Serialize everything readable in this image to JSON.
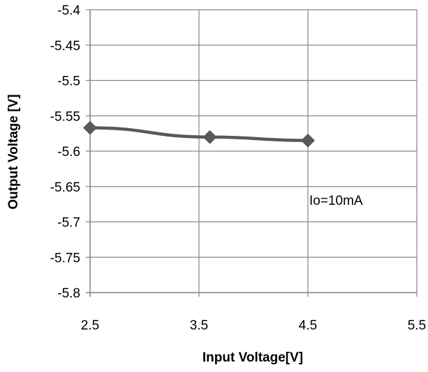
{
  "chart_data": {
    "type": "line",
    "xlabel": "Input Voltage[V]",
    "ylabel": "Output Voltage [V]",
    "xlim": [
      2.5,
      5.5
    ],
    "ylim": [
      -5.8,
      -5.4
    ],
    "x_ticks": [
      "2.5",
      "3.5",
      "4.5",
      "5.5"
    ],
    "y_ticks": [
      "-5.4",
      "-5.45",
      "-5.5",
      "-5.55",
      "-5.6",
      "-5.65",
      "-5.7",
      "-5.75",
      "-5.8"
    ],
    "grid": true,
    "series": [
      {
        "x": [
          2.5,
          3.6,
          4.5
        ],
        "y": [
          -5.567,
          -5.58,
          -5.585
        ],
        "color": "#595959",
        "marker": "diamond"
      }
    ],
    "annotations": [
      "Io=10mA"
    ]
  }
}
